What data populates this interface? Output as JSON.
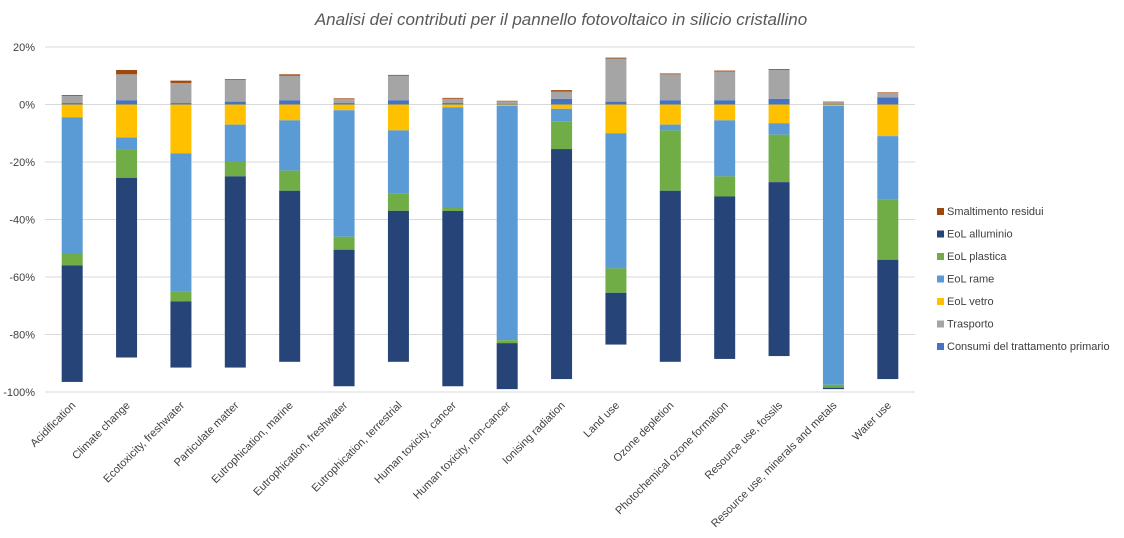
{
  "chart_data": {
    "type": "bar",
    "stacked": true,
    "title": "Analisi dei contributi per il pannello fotovoltaico in silicio cristallino",
    "xlabel": "",
    "ylabel": "",
    "ylim": [
      -100,
      20
    ],
    "yticks": [
      20,
      0,
      -20,
      -40,
      -60,
      -80,
      -100
    ],
    "ytick_labels": [
      "20%",
      "0%",
      "-20%",
      "-40%",
      "-60%",
      "-80%",
      "-100%"
    ],
    "grid": true,
    "legend_position": "right",
    "categories": [
      "Acidification",
      "Climate change",
      "Ecotoxicity, freshwater",
      "Particulate matter",
      "Eutrophication, marine",
      "Eutrophication, freshwater",
      "Eutrophication, terrestrial",
      "Human toxicity, cancer",
      "Human toxicity, non-cancer",
      "Ionising radiation",
      "Land use",
      "Ozone depletion",
      "Photochemical ozone formation",
      "Resource use, fossils",
      "Resource use, minerals and metals",
      "Water use"
    ],
    "series": [
      {
        "name": "Consumi del trattamento primario",
        "color": "#4472C4",
        "values": [
          0.5,
          1.5,
          0.5,
          1,
          1.5,
          0.5,
          1.5,
          0.5,
          0.3,
          2,
          1,
          1.5,
          1.5,
          2,
          0.3,
          2.5
        ]
      },
      {
        "name": "Trasporto",
        "color": "#A5A5A5",
        "values": [
          2.5,
          9,
          7,
          7.5,
          8.5,
          1.5,
          8.5,
          1.5,
          0.8,
          2.5,
          15,
          9,
          10,
          10,
          0.5,
          1.5
        ]
      },
      {
        "name": "EoL vetro",
        "color": "#FFC000",
        "values": [
          -4.5,
          -11.5,
          -17,
          -7,
          -5.5,
          -2,
          -9,
          -1,
          -0.5,
          -1.5,
          -10,
          -7,
          -5.5,
          -6.5,
          -0.5,
          -11
        ]
      },
      {
        "name": "EoL rame",
        "color": "#5B9BD5",
        "values": [
          -47.5,
          -4,
          -48,
          -13,
          -17.5,
          -44,
          -22,
          -35,
          -81.5,
          -4.5,
          -47,
          -2,
          -19.5,
          -4,
          -97,
          -22
        ]
      },
      {
        "name": "EoL plastica",
        "color": "#70AD47",
        "values": [
          -4,
          -10,
          -3.5,
          -5,
          -7,
          -4.5,
          -6,
          -1,
          -1,
          -9.5,
          -8.5,
          -21,
          -7,
          -16.5,
          -1,
          -21
        ]
      },
      {
        "name": "EoL alluminio",
        "color": "#264478",
        "values": [
          -40.5,
          -62.5,
          -23,
          -66.5,
          -59.5,
          -47.5,
          -52.5,
          -61,
          -16,
          -80,
          -18,
          -59.5,
          -56.5,
          -60.5,
          -0.5,
          -41.5
        ]
      },
      {
        "name": "Smaltimento residui",
        "color": "#9E480E",
        "values": [
          0.3,
          1.5,
          0.8,
          0.3,
          0.5,
          0.2,
          0.3,
          0.3,
          0.2,
          0.5,
          0.3,
          0.3,
          0.3,
          0.3,
          0.2,
          0.2
        ]
      }
    ],
    "legend_order": [
      "Smaltimento residui",
      "EoL alluminio",
      "EoL plastica",
      "EoL rame",
      "EoL vetro",
      "Trasporto",
      "Consumi del trattamento primario"
    ]
  }
}
